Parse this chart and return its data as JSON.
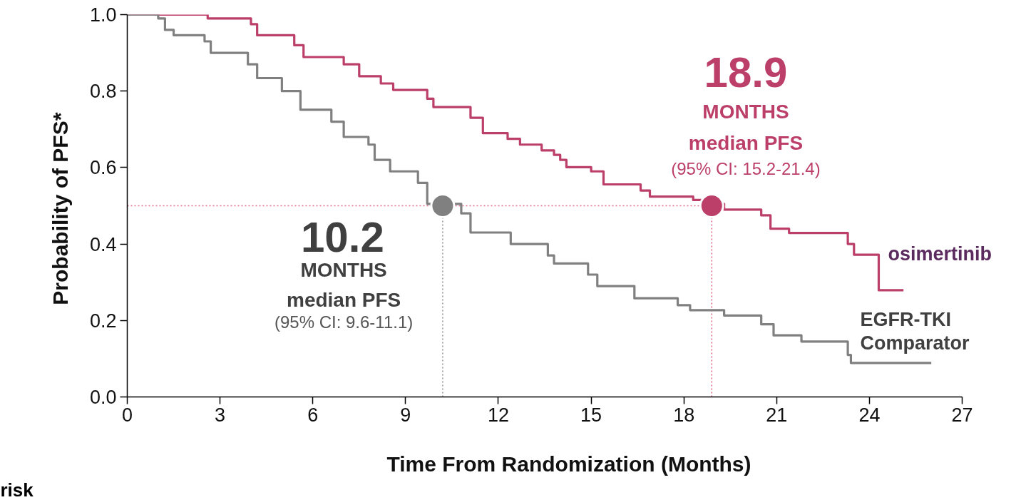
{
  "chart_data": {
    "type": "step",
    "xlabel": "Time From Randomization (Months)",
    "ylabel": "Probability of  PFS*",
    "xlim": [
      0,
      27
    ],
    "xticks": [
      0,
      3,
      6,
      9,
      12,
      15,
      18,
      21,
      24,
      27
    ],
    "ylim": [
      0,
      1.0
    ],
    "yticks": [
      {
        "value": 0,
        "label": "0.0"
      },
      {
        "value": 0.2,
        "label": "0.2"
      },
      {
        "value": 0.4,
        "label": "0.4"
      },
      {
        "value": 0.6,
        "label": "0.6"
      },
      {
        "value": 0.8,
        "label": "0.8"
      },
      {
        "value": 1.0,
        "label": "1.0"
      }
    ],
    "grid": false,
    "line_style": "solid",
    "series": [
      {
        "name": "osimertinib",
        "color": "#bc3f6a",
        "x": [
          0,
          2.6,
          4.0,
          4.2,
          5.4,
          5.7,
          7.0,
          7.5,
          8.2,
          8.6,
          9.7,
          9.9,
          11.1,
          11.5,
          12.3,
          12.7,
          13.4,
          13.8,
          14.0,
          14.2,
          15.0,
          15.4,
          16.6,
          16.9,
          18.3,
          18.6,
          19.3,
          20.5,
          20.8,
          21.4,
          23.3,
          23.5,
          24.3,
          25.1
        ],
        "values": [
          1.0,
          0.99,
          0.975,
          0.946,
          0.92,
          0.889,
          0.87,
          0.839,
          0.82,
          0.803,
          0.78,
          0.758,
          0.73,
          0.69,
          0.675,
          0.66,
          0.645,
          0.633,
          0.62,
          0.601,
          0.59,
          0.556,
          0.54,
          0.524,
          0.515,
          0.505,
          0.49,
          0.475,
          0.44,
          0.429,
          0.4,
          0.372,
          0.279,
          0.279
        ]
      },
      {
        "name": "EGFR-TKI Comparator",
        "color": "#808080",
        "x": [
          0,
          1.0,
          1.22,
          1.5,
          2.5,
          2.7,
          3.9,
          4.2,
          5.0,
          5.6,
          6.6,
          7.0,
          7.8,
          8.0,
          8.5,
          9.4,
          9.7,
          10.8,
          11.1,
          12.4,
          13.6,
          13.8,
          14.9,
          15.2,
          16.4,
          17.8,
          18.2,
          19.3,
          20.5,
          20.9,
          21.8,
          23.3,
          23.4,
          26.0
        ],
        "values": [
          1.0,
          0.99,
          0.96,
          0.946,
          0.93,
          0.9,
          0.87,
          0.834,
          0.8,
          0.751,
          0.72,
          0.68,
          0.66,
          0.62,
          0.59,
          0.56,
          0.505,
          0.48,
          0.43,
          0.4,
          0.37,
          0.349,
          0.32,
          0.29,
          0.258,
          0.24,
          0.227,
          0.213,
          0.19,
          0.161,
          0.145,
          0.11,
          0.089,
          0.089
        ]
      },
      {
        "type": "scatter",
        "marker": "circle",
        "x": [
          10.2,
          18.9
        ],
        "values": [
          0.5,
          0.5
        ],
        "colors": [
          "#808080",
          "#bc3f6a"
        ]
      }
    ],
    "ref_lines": [
      {
        "axis": "y",
        "value": 0.5,
        "color": "#e06a8a",
        "line_style": "dotted"
      },
      {
        "axis": "x",
        "value": 10.2,
        "color": "#999999",
        "line_style": "dotted"
      },
      {
        "axis": "x",
        "value": 18.9,
        "color": "#e06a8a",
        "line_style": "dotted"
      }
    ],
    "annotations": [
      "10.2",
      "MONTHS",
      "median PFS",
      "(95% CI: 9.6-11.1)",
      "18.9",
      "MONTHS",
      "median PFS",
      "(95% CI: 15.2-21.4)",
      "risk"
    ]
  }
}
